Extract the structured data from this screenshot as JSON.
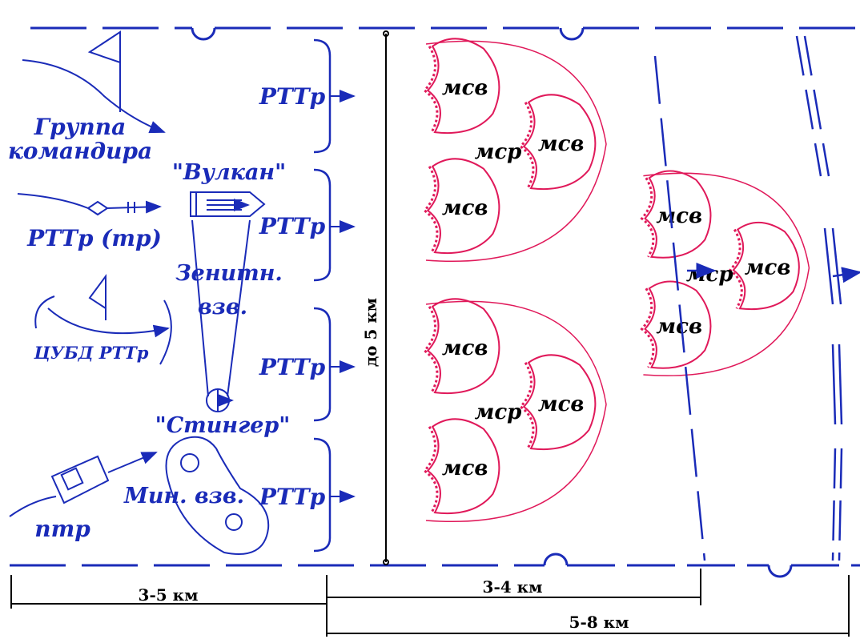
{
  "labels": {
    "group_commander_1": "Группа",
    "group_commander_2": "командира",
    "vulkan": "\"Вулкан\"",
    "rttr_tr": "РТТр (тр)",
    "zenith_1": "Зенитн.",
    "zenith_2": "взв.",
    "cubd": "ЦУБД РТТр",
    "stinger": "\"Стингер\"",
    "min_vzv": "Мин. взв.",
    "ptr": "птр",
    "rttr": "РТТр"
  },
  "units": {
    "msv": "мсв",
    "msr": "мср"
  },
  "distances": {
    "d1": "3-5 км",
    "d2": "3-4 км",
    "d3": "5-8 км",
    "depth": "до 5 км"
  },
  "colors": {
    "own_forces": "#1a2bb8",
    "enemy_forces": "#e0195a"
  }
}
